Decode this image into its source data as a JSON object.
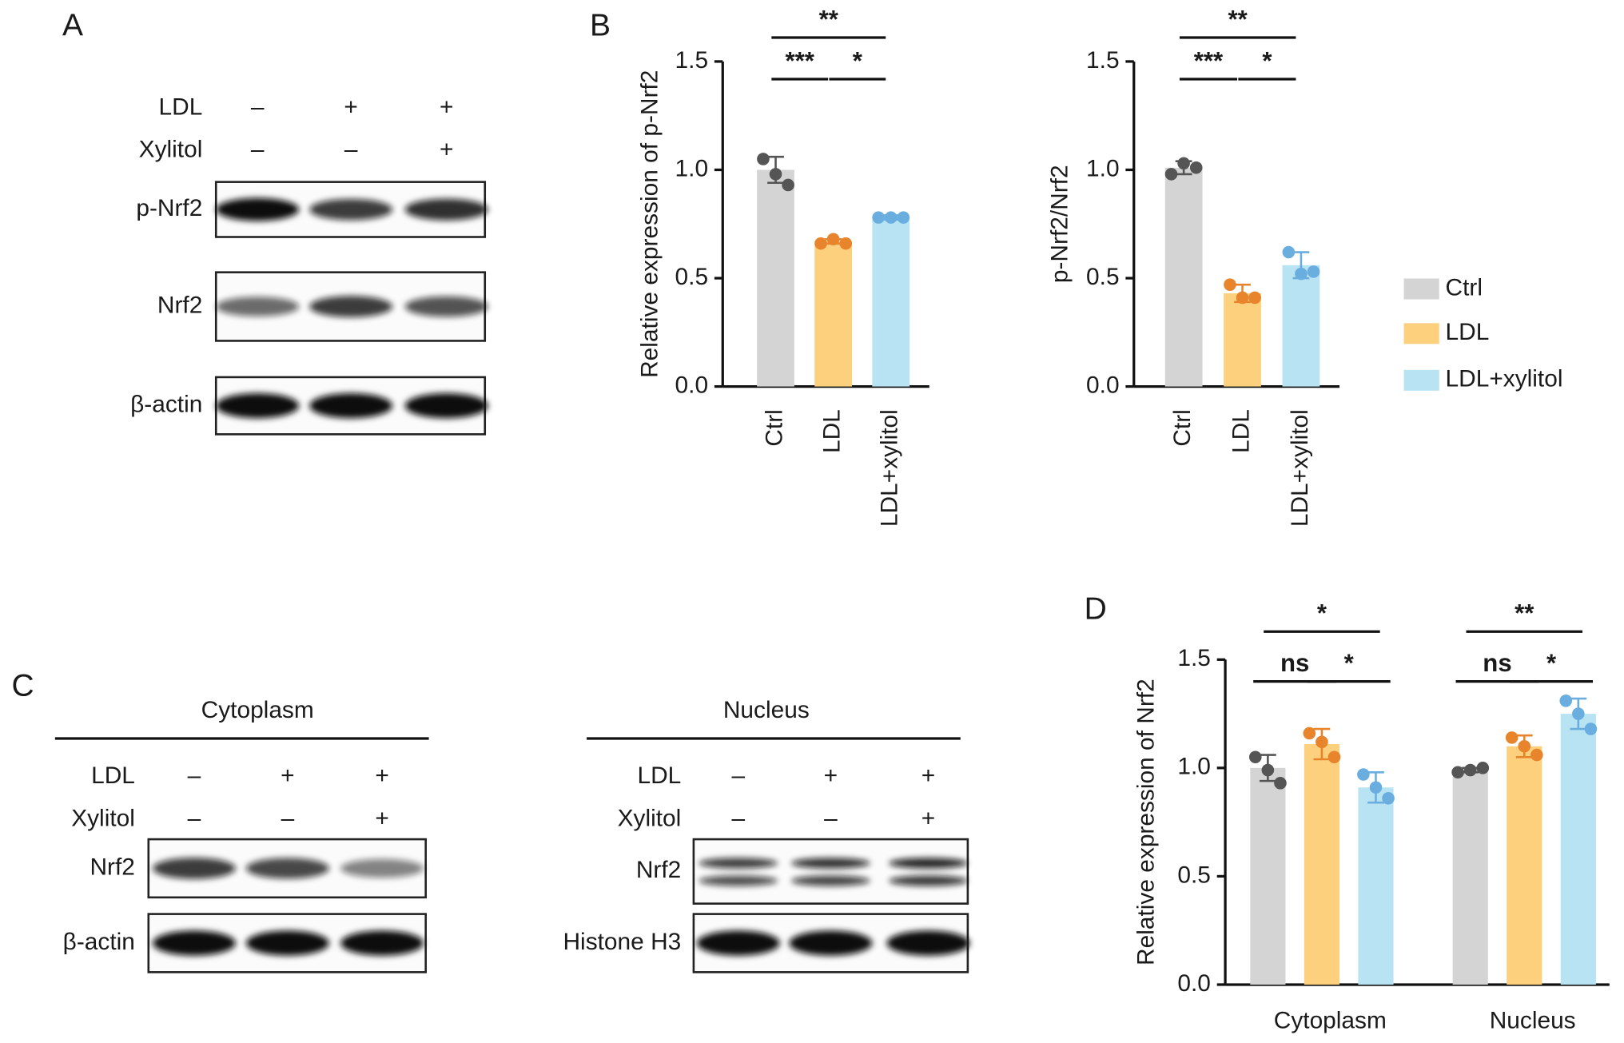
{
  "panel_labels": [
    "A",
    "B",
    "C",
    "D"
  ],
  "blots": [
    {
      "treatments": [
        {
          "label": "LDL",
          "signs": [
            "–",
            "+",
            "+"
          ]
        },
        {
          "label": "Xylitol",
          "signs": [
            "–",
            "–",
            "+"
          ]
        }
      ],
      "bands": [
        "p-Nrf2",
        "Nrf2",
        "β-actin"
      ]
    },
    {
      "title": "Cytoplasm",
      "treatments": [
        {
          "label": "LDL",
          "signs": [
            "–",
            "+",
            "+"
          ]
        },
        {
          "label": "Xylitol",
          "signs": [
            "–",
            "–",
            "+"
          ]
        }
      ],
      "bands": [
        "Nrf2",
        "β-actin"
      ]
    },
    {
      "title": "Nucleus",
      "treatments": [
        {
          "label": "LDL",
          "signs": [
            "–",
            "+",
            "+"
          ]
        },
        {
          "label": "Xylitol",
          "signs": [
            "–",
            "–",
            "+"
          ]
        }
      ],
      "bands": [
        "Nrf2",
        "Histone H3"
      ]
    }
  ],
  "chart_data": [
    {
      "type": "bar",
      "ylabel": "Relative expression of p-Nrf2",
      "categories": [
        "Ctrl",
        "LDL",
        "LDL+xylitol"
      ],
      "values": [
        1.0,
        0.67,
        0.78
      ],
      "errors": [
        0.06,
        0.01,
        0.01
      ],
      "points": [
        [
          1.05,
          0.98,
          0.93
        ],
        [
          0.66,
          0.68,
          0.66
        ],
        [
          0.78,
          0.78,
          0.78
        ]
      ],
      "colors": [
        "#d4d4d4",
        "#fcd07c",
        "#b8e3f2"
      ],
      "point_colors": [
        "#555555",
        "#e8842c",
        "#6aaee0"
      ],
      "ylim": [
        0,
        1.5
      ],
      "yticks": [
        {
          "value": 0,
          "label": "0.0"
        },
        0.5,
        {
          "value": 1,
          "label": "1.0"
        },
        1.5
      ],
      "annotations": [
        {
          "from": 0,
          "to": 1,
          "label": "***"
        },
        {
          "from": 1,
          "to": 2,
          "label": "*"
        },
        {
          "from": 0,
          "to": 2,
          "label": "**"
        }
      ]
    },
    {
      "type": "bar",
      "ylabel": "p-Nrf2/Nrf2",
      "categories": [
        "Ctrl",
        "LDL",
        "LDL+xylitol"
      ],
      "values": [
        1.01,
        0.43,
        0.56
      ],
      "errors": [
        0.03,
        0.04,
        0.06
      ],
      "points": [
        [
          0.98,
          1.03,
          1.01
        ],
        [
          0.47,
          0.41,
          0.41
        ],
        [
          0.62,
          0.52,
          0.53
        ]
      ],
      "colors": [
        "#d4d4d4",
        "#fcd07c",
        "#b8e3f2"
      ],
      "point_colors": [
        "#555555",
        "#e8842c",
        "#6aaee0"
      ],
      "ylim": [
        0,
        1.5
      ],
      "yticks": [
        {
          "value": 0,
          "label": "0.0"
        },
        0.5,
        {
          "value": 1,
          "label": "1.0"
        },
        1.5
      ],
      "annotations": [
        {
          "from": 0,
          "to": 1,
          "label": "***"
        },
        {
          "from": 1,
          "to": 2,
          "label": "*"
        },
        {
          "from": 0,
          "to": 2,
          "label": "**"
        }
      ]
    },
    {
      "type": "bar",
      "ylabel": "Relative expression of Nrf2",
      "categories": [
        "Cytoplasm",
        "Nucleus"
      ],
      "series": [
        {
          "name": "Ctrl",
          "color": "#d4d4d4",
          "point_color": "#555555",
          "values": [
            1.0,
            0.99
          ],
          "errors": [
            0.06,
            0.01
          ],
          "points": [
            [
              1.05,
              0.99,
              0.93
            ],
            [
              0.98,
              0.99,
              1.0
            ]
          ]
        },
        {
          "name": "LDL",
          "color": "#fcd07c",
          "point_color": "#e8842c",
          "values": [
            1.11,
            1.1
          ],
          "errors": [
            0.07,
            0.05
          ],
          "points": [
            [
              1.16,
              1.12,
              1.05
            ],
            [
              1.14,
              1.1,
              1.06
            ]
          ]
        },
        {
          "name": "LDL+xylitol",
          "color": "#b8e3f2",
          "point_color": "#6aaee0",
          "values": [
            0.91,
            1.25
          ],
          "errors": [
            0.07,
            0.07
          ],
          "points": [
            [
              0.97,
              0.91,
              0.86
            ],
            [
              1.31,
              1.25,
              1.18
            ]
          ]
        }
      ],
      "ylim": [
        0,
        1.5
      ],
      "yticks": [
        {
          "value": 0,
          "label": "0.0"
        },
        0.5,
        {
          "value": 1,
          "label": "1.0"
        },
        1.5
      ],
      "annotations": [
        {
          "category": 0,
          "from": 0,
          "to": 1,
          "label": "ns"
        },
        {
          "category": 0,
          "from": 1,
          "to": 2,
          "label": "*"
        },
        {
          "category": 0,
          "from": 0,
          "to": 2,
          "label": "*"
        },
        {
          "category": 1,
          "from": 0,
          "to": 1,
          "label": "ns"
        },
        {
          "category": 1,
          "from": 1,
          "to": 2,
          "label": "*"
        },
        {
          "category": 1,
          "from": 0,
          "to": 2,
          "label": "**"
        }
      ]
    }
  ]
}
